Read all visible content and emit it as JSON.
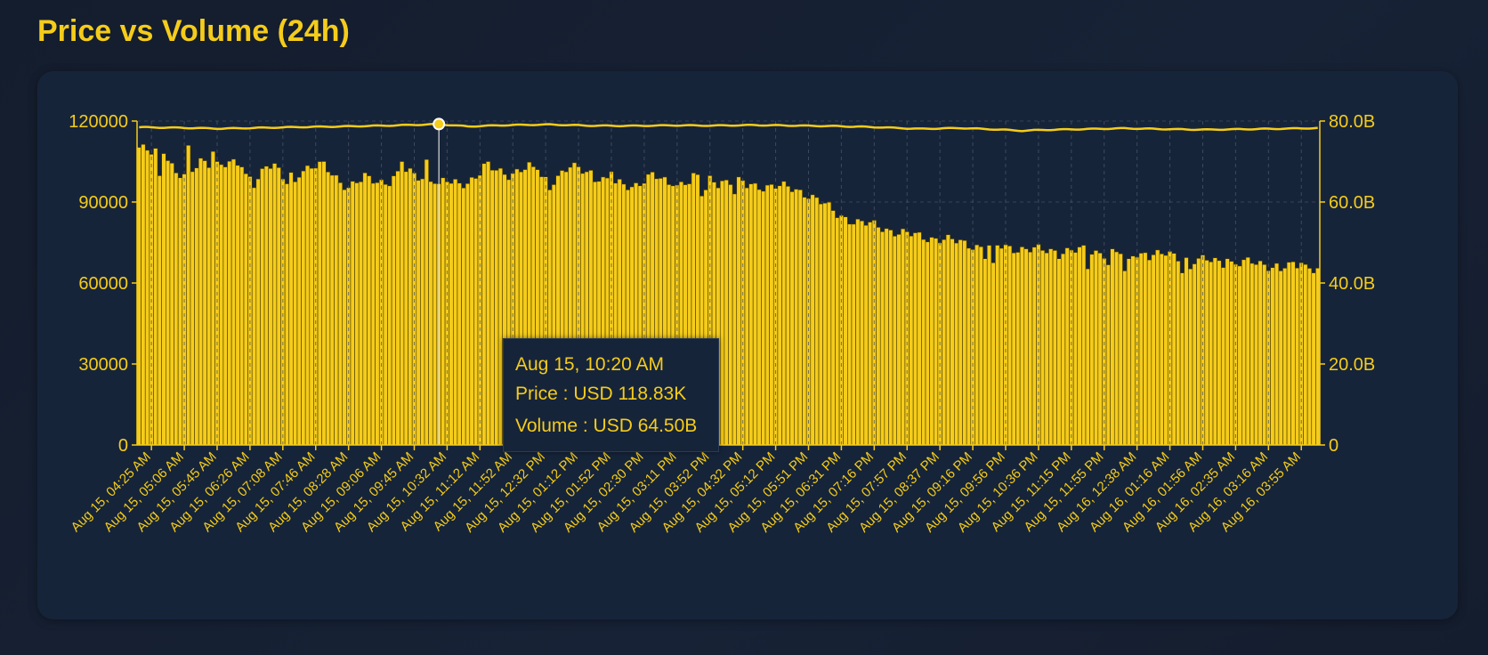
{
  "page": {
    "title": "Price vs Volume (24h)"
  },
  "colors": {
    "accent": "#f5cc1a",
    "bar_fill": "#f5cc1a",
    "bar_stroke": "#4a3b00",
    "card_bg": "#16243a",
    "grid": "#4a5568"
  },
  "tooltip": {
    "time": "Aug 15, 10:20 AM",
    "price": "Price : USD 118.83K",
    "volume": "Volume : USD 64.50B"
  },
  "chart_data": {
    "type": "bar",
    "title": "Price vs Volume (24h)",
    "left_axis": {
      "series": "Price",
      "min": 0,
      "max": 120000,
      "ticks": [
        "0",
        "30000",
        "60000",
        "90000",
        "120000"
      ]
    },
    "right_axis": {
      "series": "Volume",
      "min": 0,
      "max": 80,
      "unit": "B",
      "ticks": [
        "0",
        "20.0B",
        "40.0B",
        "60.0B",
        "80.0B"
      ]
    },
    "x_tick_labels": [
      "Aug 15, 04:25 AM",
      "Aug 15, 05:06 AM",
      "Aug 15, 05:45 AM",
      "Aug 15, 06:26 AM",
      "Aug 15, 07:08 AM",
      "Aug 15, 07:46 AM",
      "Aug 15, 08:28 AM",
      "Aug 15, 09:06 AM",
      "Aug 15, 09:45 AM",
      "Aug 15, 10:32 AM",
      "Aug 15, 11:12 AM",
      "Aug 15, 11:52 AM",
      "Aug 15, 12:32 PM",
      "Aug 15, 01:12 PM",
      "Aug 15, 01:52 PM",
      "Aug 15, 02:30 PM",
      "Aug 15, 03:11 PM",
      "Aug 15, 03:52 PM",
      "Aug 15, 04:32 PM",
      "Aug 15, 05:12 PM",
      "Aug 15, 05:51 PM",
      "Aug 15, 06:31 PM",
      "Aug 15, 07:16 PM",
      "Aug 15, 07:57 PM",
      "Aug 15, 08:37 PM",
      "Aug 15, 09:16 PM",
      "Aug 15, 09:56 PM",
      "Aug 15, 10:36 PM",
      "Aug 15, 11:15 PM",
      "Aug 15, 11:55 PM",
      "Aug 16, 12:38 AM",
      "Aug 16, 01:16 AM",
      "Aug 16, 01:56 AM",
      "Aug 16, 02:35 AM",
      "Aug 16, 03:16 AM",
      "Aug 16, 03:55 AM"
    ],
    "volume_keyframes": [
      [
        0,
        73.5
      ],
      [
        3,
        72.0
      ],
      [
        6,
        73.0
      ],
      [
        9,
        67.5
      ],
      [
        12,
        66.0
      ],
      [
        15,
        70.0
      ],
      [
        20,
        69.5
      ],
      [
        25,
        69.0
      ],
      [
        28,
        65.0
      ],
      [
        31,
        69.0
      ],
      [
        33,
        68.5
      ],
      [
        35,
        66.0
      ],
      [
        40,
        68.0
      ],
      [
        45,
        69.0
      ],
      [
        51,
        63.5
      ],
      [
        55,
        66.0
      ],
      [
        60,
        65.0
      ],
      [
        65,
        67.5
      ],
      [
        70,
        66.0
      ],
      [
        75,
        64.5
      ],
      [
        80,
        65.0
      ],
      [
        85,
        68.5
      ],
      [
        90,
        67.0
      ],
      [
        95,
        68.5
      ],
      [
        100,
        65.0
      ],
      [
        105,
        68.5
      ],
      [
        110,
        67.5
      ],
      [
        115,
        64.5
      ],
      [
        120,
        64.0
      ],
      [
        125,
        66.5
      ],
      [
        130,
        64.0
      ],
      [
        135,
        66.0
      ],
      [
        140,
        65.5
      ],
      [
        145,
        65.0
      ],
      [
        150,
        64.0
      ],
      [
        155,
        64.0
      ],
      [
        160,
        63.0
      ],
      [
        163,
        62.0
      ],
      [
        166,
        60.0
      ],
      [
        170,
        57.0
      ],
      [
        175,
        55.0
      ],
      [
        180,
        54.0
      ],
      [
        185,
        52.5
      ],
      [
        190,
        51.5
      ],
      [
        195,
        51.0
      ],
      [
        200,
        50.0
      ],
      [
        205,
        49.0
      ],
      [
        210,
        49.0
      ],
      [
        215,
        48.5
      ],
      [
        220,
        48.0
      ],
      [
        225,
        48.0
      ],
      [
        230,
        48.0
      ],
      [
        235,
        47.5
      ],
      [
        240,
        47.5
      ],
      [
        245,
        47.0
      ],
      [
        250,
        47.0
      ],
      [
        255,
        46.0
      ],
      [
        260,
        45.5
      ],
      [
        265,
        45.0
      ],
      [
        270,
        45.0
      ],
      [
        275,
        44.5
      ],
      [
        281,
        44.0
      ],
      [
        287,
        44.0
      ]
    ],
    "volume_overrides": [
      [
        5,
        66.5
      ],
      [
        12,
        74.0
      ],
      [
        13,
        67.5
      ],
      [
        18,
        72.5
      ],
      [
        26,
        67.0
      ],
      [
        36,
        64.5
      ],
      [
        38,
        65.0
      ],
      [
        54,
        65.0
      ],
      [
        61,
        64.0
      ],
      [
        64,
        70.0
      ],
      [
        70,
        70.5
      ],
      [
        73,
        64.5
      ],
      [
        75,
        65.0
      ],
      [
        84,
        69.5
      ],
      [
        85,
        70.0
      ],
      [
        97,
        68.0
      ],
      [
        100,
        63.0
      ],
      [
        111,
        65.0
      ],
      [
        115,
        67.5
      ],
      [
        130,
        64.0
      ],
      [
        134,
        64.5
      ],
      [
        137,
        61.5
      ],
      [
        138,
        63.0
      ],
      [
        141,
        63.5
      ],
      [
        145,
        62.0
      ],
      [
        148,
        63.5
      ],
      [
        206,
        46.0
      ],
      [
        208,
        45.0
      ],
      [
        224,
        46.0
      ],
      [
        231,
        43.5
      ],
      [
        236,
        44.5
      ],
      [
        240,
        43.0
      ],
      [
        241,
        46.0
      ],
      [
        245,
        47.5
      ],
      [
        254,
        42.5
      ],
      [
        256,
        43.5
      ],
      [
        265,
        46.0
      ],
      [
        278,
        43.0
      ],
      [
        283,
        45.0
      ]
    ],
    "price_keyframes": [
      [
        0,
        117700
      ],
      [
        10,
        117500
      ],
      [
        20,
        117200
      ],
      [
        30,
        117500
      ],
      [
        40,
        117800
      ],
      [
        50,
        118000
      ],
      [
        60,
        118300
      ],
      [
        73,
        118830
      ],
      [
        80,
        118000
      ],
      [
        90,
        118500
      ],
      [
        100,
        118700
      ],
      [
        110,
        118300
      ],
      [
        120,
        118200
      ],
      [
        130,
        118400
      ],
      [
        140,
        118300
      ],
      [
        150,
        118500
      ],
      [
        160,
        118300
      ],
      [
        170,
        118100
      ],
      [
        180,
        117700
      ],
      [
        190,
        117100
      ],
      [
        200,
        117400
      ],
      [
        210,
        116800
      ],
      [
        215,
        116400
      ],
      [
        220,
        116700
      ],
      [
        230,
        117000
      ],
      [
        240,
        117300
      ],
      [
        250,
        117000
      ],
      [
        260,
        116800
      ],
      [
        270,
        117000
      ],
      [
        280,
        117200
      ],
      [
        287,
        117400
      ]
    ],
    "bar_count": 288,
    "highlight_index": 73,
    "grid": true
  }
}
